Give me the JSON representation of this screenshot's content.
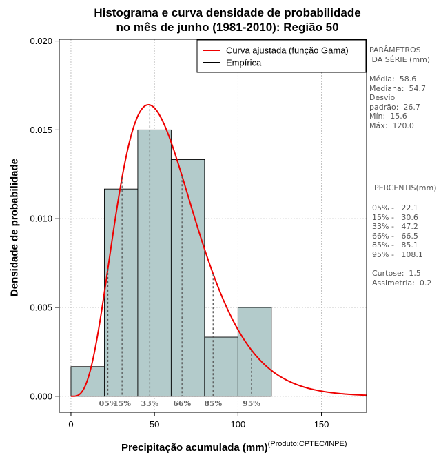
{
  "chart_data": {
    "type": "bar",
    "title": "Histograma e curva densidade de probabilidade",
    "subtitle": "no mês de junho (1981-2010): Região 50",
    "xlabel": "Precipitação acumulada (mm)",
    "ylabel": "Densidade de probabilidade",
    "source_note": "(Produto:CPTEC/INPE)",
    "xlim": [
      -7,
      177
    ],
    "ylim": [
      -0.0009,
      0.0201
    ],
    "x_ticks": [
      {
        "value": 0,
        "label": "0"
      },
      {
        "value": 50,
        "label": "50"
      },
      {
        "value": 100,
        "label": "100"
      },
      {
        "value": 150,
        "label": "150"
      }
    ],
    "y_ticks": [
      {
        "value": 0,
        "label": "0.000"
      },
      {
        "value": 0.005,
        "label": "0.005"
      },
      {
        "value": 0.01,
        "label": "0.010"
      },
      {
        "value": 0.015,
        "label": "0.015"
      },
      {
        "value": 0.02,
        "label": "0.020"
      }
    ],
    "grid": true,
    "legend_position": "top-right",
    "legend": [
      {
        "label": "Curva ajustada (função Gama)",
        "color": "#ee0000"
      },
      {
        "label": "Empírica",
        "color": "#000000"
      }
    ],
    "bins": [
      {
        "x0": 0,
        "x1": 20,
        "density": 0.00167
      },
      {
        "x0": 20,
        "x1": 40,
        "density": 0.01167
      },
      {
        "x0": 40,
        "x1": 60,
        "density": 0.015
      },
      {
        "x0": 60,
        "x1": 80,
        "density": 0.01333
      },
      {
        "x0": 80,
        "x1": 100,
        "density": 0.00333
      },
      {
        "x0": 100,
        "x1": 120,
        "density": 0.005
      }
    ],
    "gamma_fit": {
      "shape": 4.8,
      "scale": 12.2
    },
    "percentile_markers": [
      {
        "value": 22.1,
        "label": "05%"
      },
      {
        "value": 30.6,
        "label": "15%"
      },
      {
        "value": 47.2,
        "label": "33%"
      },
      {
        "value": 66.5,
        "label": "66%"
      },
      {
        "value": 85.1,
        "label": "85%"
      },
      {
        "value": 108.1,
        "label": "95%"
      }
    ],
    "colors": {
      "bar_fill": "#b3cbcb",
      "curve": "#ee0000",
      "percentile_line": "#555555",
      "grid": "#b5b5b5"
    }
  },
  "stats_panel": {
    "header": "PARÂMETROS\n DA SÉRIE (mm)",
    "body": "Média:  58.6\nMediana:  54.7\nDesvio\npadrão:  26.7\nMín:  15.6\nMáx:  120.0"
  },
  "percentis_panel": {
    "header": "PERCENTIS(mm)",
    "body": "05% -   22.1\n15% -   30.6\n33% -   47.2\n66% -   66.5\n85% -   85.1\n95% -   108.1\n\nCurtose:  1.5\nAssimetria:  0.2"
  }
}
